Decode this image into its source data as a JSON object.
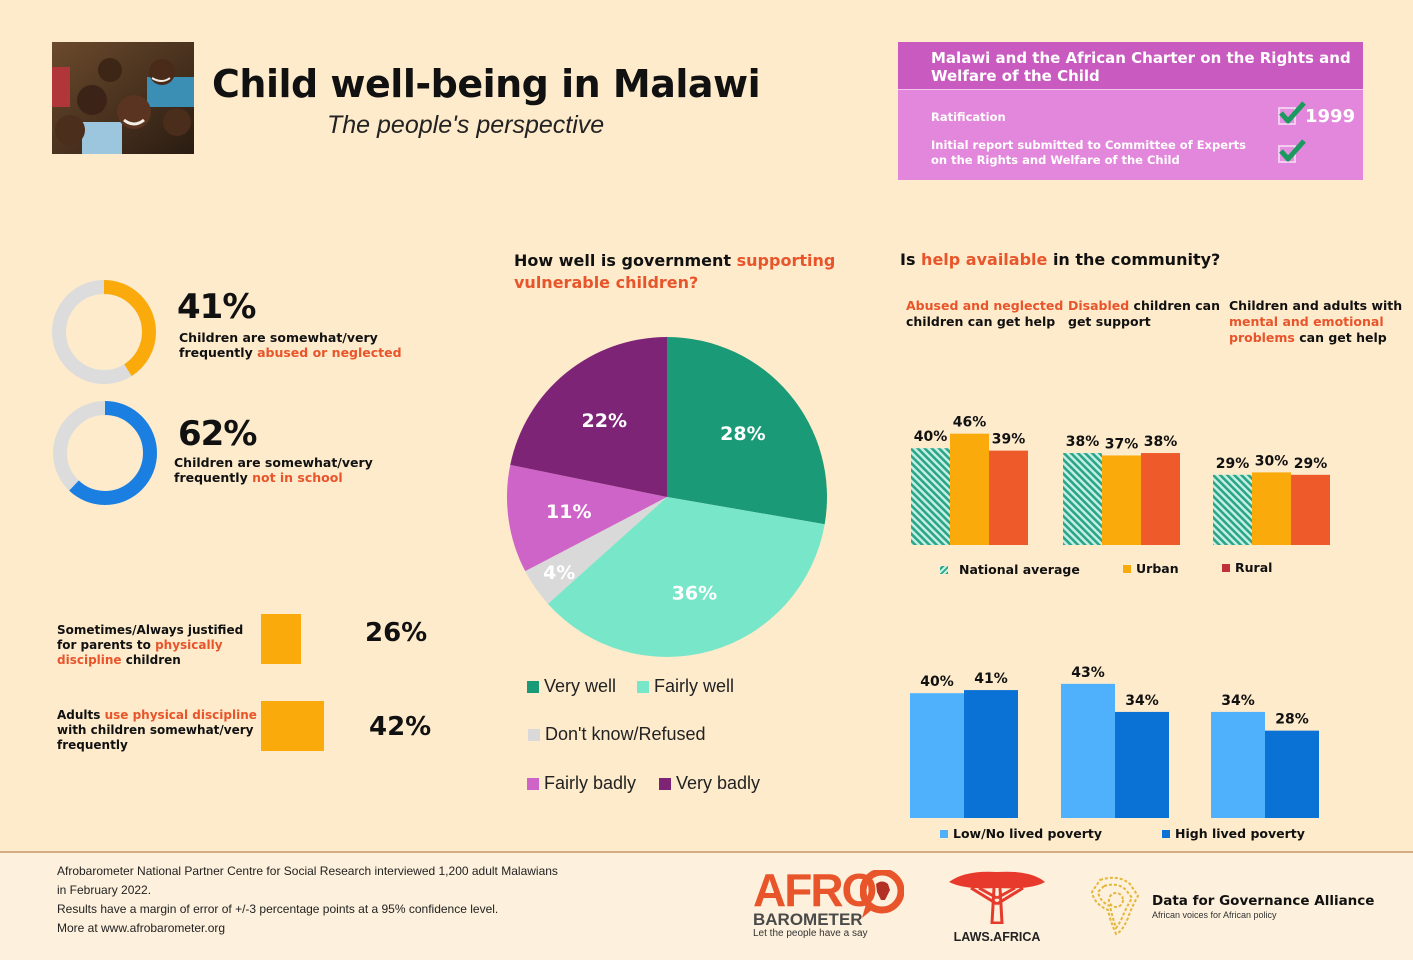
{
  "header": {
    "title": "Child well-being in Malawi",
    "subtitle": "The people's perspective",
    "photo_alt": "Group of smiling children"
  },
  "charter": {
    "title": "Malawi and the African Charter on the Rights and Welfare of the Child",
    "rows": [
      {
        "label": "Ratification",
        "checked": true,
        "value": "1999"
      },
      {
        "label_line1": "Initial report submitted to Committee of Experts",
        "label_line2": "on the Rights and Welfare of the Child",
        "checked": true
      }
    ]
  },
  "stats": [
    {
      "pct": "41%",
      "value": 41,
      "desc_line1": "Children are somewhat/very",
      "desc_prefix": "frequently ",
      "desc_highlight": "abused or neglected",
      "color": "#fbaa0c"
    },
    {
      "pct": "62%",
      "value": 62,
      "desc_line1": "Children are somewhat/very",
      "desc_prefix": "frequently ",
      "desc_highlight": "not in school",
      "color": "#1a7fe0"
    }
  ],
  "discipline": [
    {
      "line1": "Sometimes/Always justified",
      "line2_prefix": "for parents to ",
      "line2_highlight": "physically",
      "line3_highlight": "discipline",
      "line3_suffix": " children",
      "pct": "26%",
      "value": 26
    },
    {
      "line1_prefix": "Adults ",
      "line1_highlight": "use physical discipline",
      "line2": "with children somewhat/very",
      "line3": "frequently",
      "pct": "42%",
      "value": 42
    }
  ],
  "pie_section": {
    "question_prefix": "How well is government ",
    "question_highlight_1": "supporting",
    "question_highlight_2": "vulnerable children?"
  },
  "help_section": {
    "question_prefix": "Is ",
    "question_highlight": "help available",
    "question_suffix": " in the community?",
    "subs": [
      {
        "highlight": "Abused and neglected",
        "rest": "children can get help"
      },
      {
        "highlight": "Disabled",
        "rest1": " children can",
        "rest2": "get support"
      },
      {
        "line1": "Children and adults with",
        "highlight1": "mental and emotional",
        "highlight2": "problems",
        "rest": " can get help"
      }
    ]
  },
  "chart_data": [
    {
      "type": "pie",
      "title": "How well is government supporting vulnerable children?",
      "categories": [
        "Very well",
        "Fairly well",
        "Don't know/Refused",
        "Fairly badly",
        "Very badly"
      ],
      "values": [
        28,
        36,
        4,
        11,
        22
      ],
      "labels": [
        "28%",
        "36%",
        "4%",
        "11%",
        "22%"
      ],
      "colors": [
        "#1b9a77",
        "#78e6c8",
        "#d9d9d9",
        "#cf64c8",
        "#7e2477"
      ],
      "legend_position": "bottom"
    },
    {
      "type": "bar",
      "title": "Is help available in the community? (by residence)",
      "categories": [
        "Abused and neglected children can get help",
        "Disabled children can get support",
        "Children and adults with mental and emotional problems can get help"
      ],
      "series": [
        {
          "name": "National average",
          "values": [
            40,
            38,
            29
          ],
          "color": "#2aa58a",
          "pattern": "hatched"
        },
        {
          "name": "Urban",
          "values": [
            46,
            37,
            30
          ],
          "color": "#fbaa0c"
        },
        {
          "name": "Rural",
          "values": [
            39,
            38,
            29
          ],
          "color": "#ef5a2a"
        }
      ],
      "ylim": [
        0,
        50
      ],
      "grid": false,
      "legend_position": "bottom"
    },
    {
      "type": "bar",
      "title": "Is help available in the community? (by lived poverty)",
      "categories": [
        "Abused and neglected children can get help",
        "Disabled children can get support",
        "Children and adults with mental and emotional problems can get help"
      ],
      "series": [
        {
          "name": "Low/No lived poverty",
          "values": [
            40,
            43,
            34
          ],
          "color": "#4fb0fc"
        },
        {
          "name": "High lived poverty",
          "values": [
            41,
            34,
            28
          ],
          "color": "#0a72d4"
        }
      ],
      "ylim": [
        0,
        50
      ],
      "grid": false,
      "legend_position": "bottom"
    }
  ],
  "footer": {
    "lines": [
      "Afrobarometer National Partner Centre for Social Research interviewed 1,200 adult Malawians",
      "in February 2022.",
      "Results have a margin of error of +/-3 percentage points at a 95% confidence level.",
      "More at www.afrobarometer.org"
    ],
    "logos": {
      "afro": "AFRO",
      "barometer": "BAROMETER",
      "afro_tagline": "Let the people have a say",
      "laws": "LAWS.AFRICA",
      "d4g_name": "Data for Governance Alliance",
      "d4g_tagline": "African voices for African policy"
    }
  }
}
